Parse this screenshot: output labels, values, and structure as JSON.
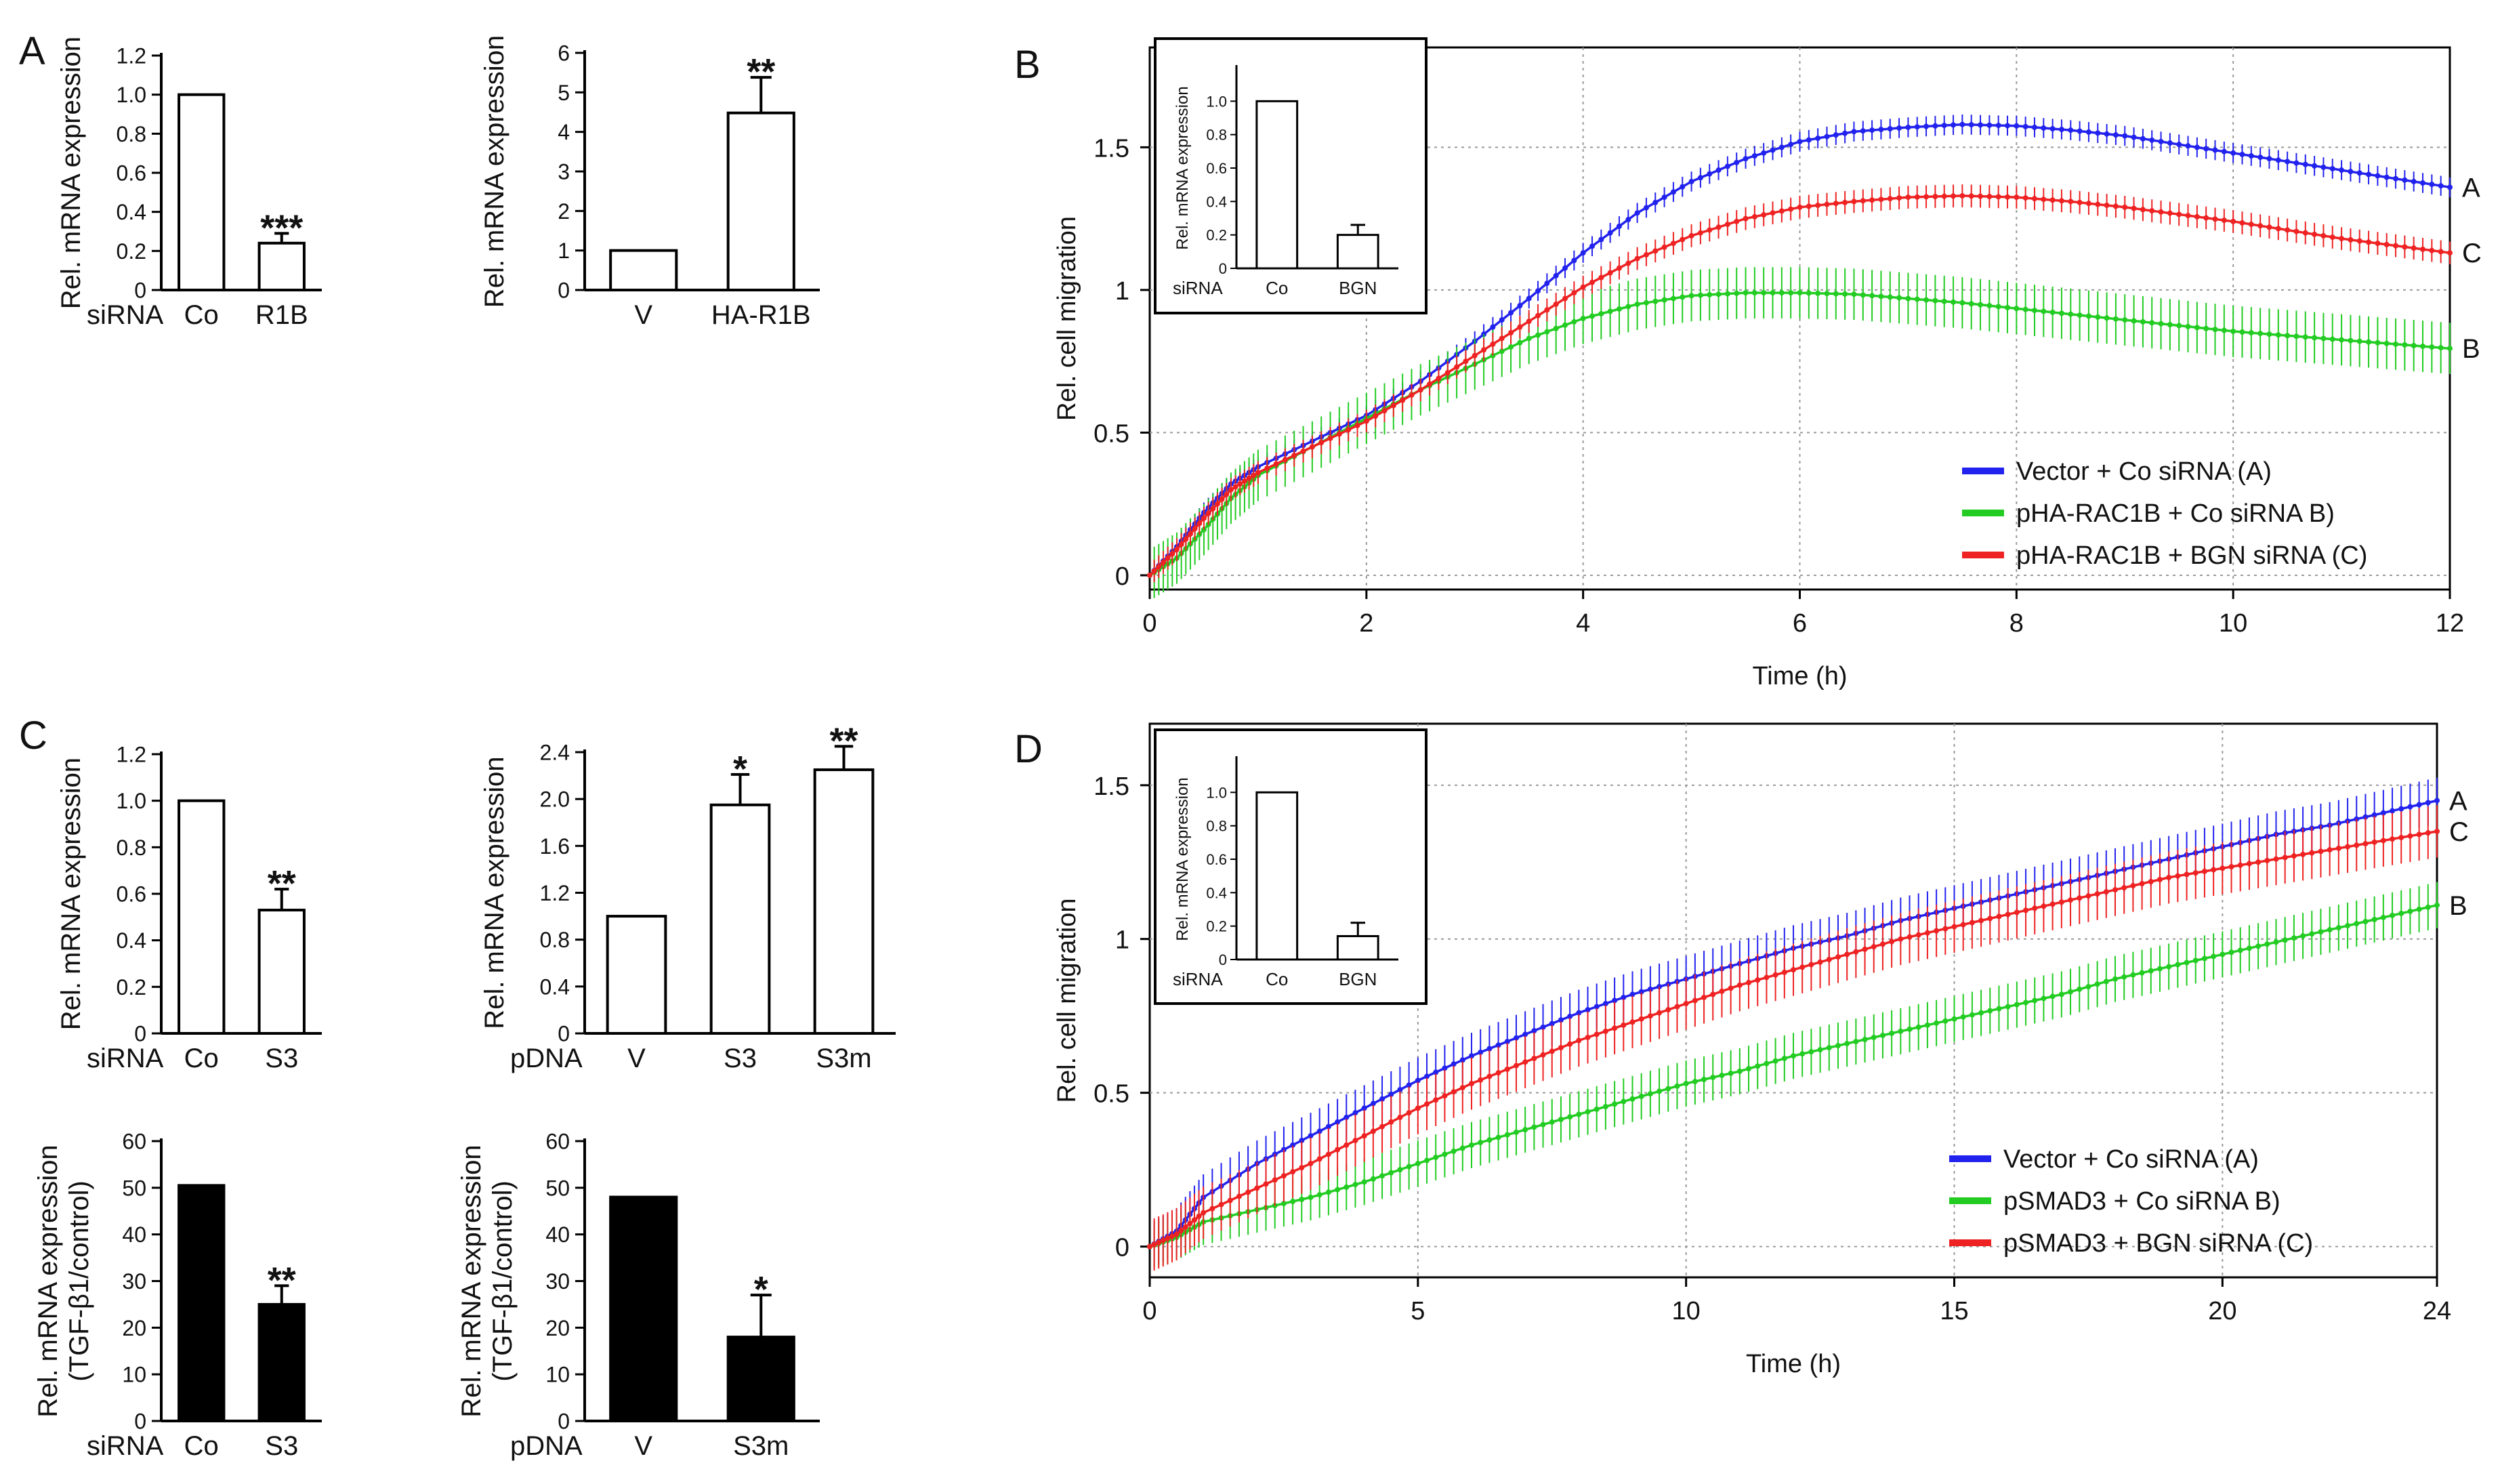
{
  "figure": {
    "panel_labels": [
      "A",
      "B",
      "C",
      "D"
    ]
  },
  "chart_data": [
    {
      "id": "A1",
      "type": "bar",
      "panel": "A",
      "ylabel": "Rel. mRNA expression",
      "group_label": "siRNA",
      "categories": [
        "Co",
        "R1B"
      ],
      "values": [
        1.0,
        0.24
      ],
      "errors": [
        0,
        0.05
      ],
      "significance": [
        "",
        "***"
      ],
      "ylim": [
        0,
        1.2
      ],
      "yticks": [
        "0",
        "0.2",
        "0.4",
        "0.6",
        "0.8",
        "1.0",
        "1.2"
      ],
      "bar_fill": "#ffffff"
    },
    {
      "id": "A2",
      "type": "bar",
      "panel": "A",
      "ylabel": "Rel. mRNA expression",
      "group_label": "",
      "categories": [
        "V",
        "HA-R1B"
      ],
      "values": [
        1.0,
        4.48
      ],
      "errors": [
        0,
        0.9
      ],
      "significance": [
        "",
        "**"
      ],
      "ylim": [
        0,
        6
      ],
      "yticks": [
        "0",
        "1",
        "2",
        "3",
        "4",
        "5",
        "6"
      ],
      "bar_fill": "#ffffff"
    },
    {
      "id": "B",
      "type": "line",
      "panel": "B",
      "xlabel": "Time (h)",
      "ylabel": "Rel. cell migration",
      "xlim": [
        0,
        12
      ],
      "ylim": [
        -0.05,
        1.85
      ],
      "xticks": [
        "0",
        "2",
        "4",
        "6",
        "8",
        "10",
        "12"
      ],
      "yticks": [
        "0",
        "0.5",
        "1",
        "1.5"
      ],
      "grid": true,
      "legend_position": "bottom-right",
      "series": [
        {
          "name": "Vector + Co siRNA (A)",
          "end_label": "A",
          "color": "#2222ee",
          "err": 0.035,
          "points": [
            [
              0,
              0
            ],
            [
              0.25,
              0.1
            ],
            [
              0.5,
              0.22
            ],
            [
              0.75,
              0.32
            ],
            [
              1,
              0.38
            ],
            [
              1.5,
              0.47
            ],
            [
              2,
              0.56
            ],
            [
              2.5,
              0.68
            ],
            [
              3,
              0.82
            ],
            [
              3.5,
              0.97
            ],
            [
              4,
              1.13
            ],
            [
              4.5,
              1.27
            ],
            [
              5,
              1.38
            ],
            [
              5.5,
              1.46
            ],
            [
              6,
              1.52
            ],
            [
              6.5,
              1.555
            ],
            [
              7,
              1.57
            ],
            [
              7.5,
              1.58
            ],
            [
              8,
              1.575
            ],
            [
              8.5,
              1.56
            ],
            [
              9,
              1.54
            ],
            [
              9.5,
              1.51
            ],
            [
              10,
              1.48
            ],
            [
              10.5,
              1.45
            ],
            [
              11,
              1.42
            ],
            [
              11.5,
              1.39
            ],
            [
              12,
              1.36
            ]
          ]
        },
        {
          "name": "pHA-RAC1B + Co siRNA B)",
          "end_label": "B",
          "color": "#22cc22",
          "err": 0.09,
          "points": [
            [
              0,
              0
            ],
            [
              0.25,
              0.06
            ],
            [
              0.5,
              0.16
            ],
            [
              0.75,
              0.27
            ],
            [
              1,
              0.35
            ],
            [
              1.5,
              0.45
            ],
            [
              2,
              0.55
            ],
            [
              2.5,
              0.65
            ],
            [
              3,
              0.74
            ],
            [
              3.5,
              0.83
            ],
            [
              4,
              0.9
            ],
            [
              4.5,
              0.95
            ],
            [
              5,
              0.98
            ],
            [
              5.5,
              0.99
            ],
            [
              6,
              0.99
            ],
            [
              6.5,
              0.985
            ],
            [
              7,
              0.97
            ],
            [
              7.5,
              0.955
            ],
            [
              8,
              0.935
            ],
            [
              8.5,
              0.915
            ],
            [
              9,
              0.895
            ],
            [
              9.5,
              0.875
            ],
            [
              10,
              0.855
            ],
            [
              10.5,
              0.84
            ],
            [
              11,
              0.825
            ],
            [
              11.5,
              0.81
            ],
            [
              12,
              0.795
            ]
          ]
        },
        {
          "name": "pHA-RAC1B + BGN siRNA (C)",
          "end_label": "C",
          "color": "#ee2222",
          "err": 0.04,
          "points": [
            [
              0,
              0
            ],
            [
              0.25,
              0.09
            ],
            [
              0.5,
              0.2
            ],
            [
              0.75,
              0.3
            ],
            [
              1,
              0.36
            ],
            [
              1.5,
              0.45
            ],
            [
              2,
              0.54
            ],
            [
              2.5,
              0.65
            ],
            [
              3,
              0.77
            ],
            [
              3.5,
              0.89
            ],
            [
              4,
              1.01
            ],
            [
              4.5,
              1.11
            ],
            [
              5,
              1.19
            ],
            [
              5.5,
              1.25
            ],
            [
              6,
              1.29
            ],
            [
              6.5,
              1.31
            ],
            [
              7,
              1.325
            ],
            [
              7.5,
              1.33
            ],
            [
              8,
              1.325
            ],
            [
              8.5,
              1.31
            ],
            [
              9,
              1.29
            ],
            [
              9.5,
              1.265
            ],
            [
              10,
              1.24
            ],
            [
              10.5,
              1.21
            ],
            [
              11,
              1.18
            ],
            [
              11.5,
              1.155
            ],
            [
              12,
              1.13
            ]
          ]
        }
      ],
      "inset": {
        "ylabel": "Rel. mRNA expression",
        "group_label": "siRNA",
        "categories": [
          "Co",
          "BGN"
        ],
        "values": [
          1.0,
          0.2
        ],
        "errors": [
          0,
          0.06
        ],
        "ylim": [
          0,
          1.2
        ],
        "yticks": [
          "0",
          "0.2",
          "0.4",
          "0.6",
          "0.8",
          "1.0"
        ]
      }
    },
    {
      "id": "C1",
      "type": "bar",
      "panel": "C",
      "ylabel": "Rel. mRNA expression",
      "group_label": "siRNA",
      "categories": [
        "Co",
        "S3"
      ],
      "values": [
        1.0,
        0.53
      ],
      "errors": [
        0,
        0.09
      ],
      "significance": [
        "",
        "**"
      ],
      "ylim": [
        0,
        1.2
      ],
      "yticks": [
        "0",
        "0.2",
        "0.4",
        "0.6",
        "0.8",
        "1.0",
        "1.2"
      ],
      "bar_fill": "#ffffff"
    },
    {
      "id": "C2",
      "type": "bar",
      "panel": "C",
      "ylabel": "Rel. mRNA expression",
      "group_label": "pDNA",
      "categories": [
        "V",
        "S3",
        "S3m"
      ],
      "values": [
        1.0,
        1.95,
        2.25
      ],
      "errors": [
        0,
        0.26,
        0.2
      ],
      "significance": [
        "",
        "*",
        "**"
      ],
      "ylim": [
        0,
        2.4
      ],
      "yticks": [
        "0",
        "0.4",
        "0.8",
        "1.2",
        "1.6",
        "2.0",
        "2.4"
      ],
      "bar_fill": "#ffffff"
    },
    {
      "id": "C3",
      "type": "bar",
      "panel": "C",
      "ylabel": "Rel. mRNA expression",
      "ylabel2": "(TGF-β1/control)",
      "group_label": "siRNA",
      "categories": [
        "Co",
        "S3"
      ],
      "values": [
        50.5,
        25
      ],
      "errors": [
        0,
        4
      ],
      "significance": [
        "",
        "**"
      ],
      "ylim": [
        0,
        60
      ],
      "yticks": [
        "0",
        "10",
        "20",
        "30",
        "40",
        "50",
        "60"
      ],
      "bar_fill": "#000000"
    },
    {
      "id": "C4",
      "type": "bar",
      "panel": "C",
      "ylabel": "Rel. mRNA expression",
      "ylabel2": "(TGF-β1/control)",
      "group_label": "pDNA",
      "categories": [
        "V",
        "S3m"
      ],
      "values": [
        48,
        18
      ],
      "errors": [
        0,
        9
      ],
      "significance": [
        "",
        "*"
      ],
      "ylim": [
        0,
        60
      ],
      "yticks": [
        "0",
        "10",
        "20",
        "30",
        "40",
        "50",
        "60"
      ],
      "bar_fill": "#000000"
    },
    {
      "id": "D",
      "type": "line",
      "panel": "D",
      "xlabel": "Time (h)",
      "ylabel": "Rel. cell migration",
      "xlim": [
        0,
        24
      ],
      "ylim": [
        -0.1,
        1.7
      ],
      "xticks": [
        "0",
        "5",
        "10",
        "15",
        "20",
        "24"
      ],
      "yticks": [
        "0",
        "0.5",
        "1",
        "1.5"
      ],
      "grid": true,
      "legend_position": "bottom-right",
      "series": [
        {
          "name": "Vector + Co siRNA (A)",
          "end_label": "A",
          "color": "#2222ee",
          "err": 0.075,
          "points": [
            [
              0,
              0
            ],
            [
              0.5,
              0.05
            ],
            [
              1,
              0.16
            ],
            [
              2,
              0.27
            ],
            [
              3,
              0.36
            ],
            [
              4,
              0.45
            ],
            [
              5,
              0.54
            ],
            [
              6,
              0.62
            ],
            [
              7,
              0.69
            ],
            [
              8,
              0.76
            ],
            [
              9,
              0.82
            ],
            [
              10,
              0.87
            ],
            [
              11,
              0.92
            ],
            [
              12,
              0.97
            ],
            [
              13,
              1.01
            ],
            [
              14,
              1.06
            ],
            [
              15,
              1.1
            ],
            [
              16,
              1.14
            ],
            [
              17,
              1.18
            ],
            [
              18,
              1.22
            ],
            [
              19,
              1.26
            ],
            [
              20,
              1.3
            ],
            [
              21,
              1.34
            ],
            [
              22,
              1.37
            ],
            [
              23,
              1.41
            ],
            [
              24,
              1.45
            ]
          ]
        },
        {
          "name": "pSMAD3 + Co siRNA B)",
          "end_label": "B",
          "color": "#22cc22",
          "err": 0.075,
          "points": [
            [
              0,
              0
            ],
            [
              0.5,
              0.03
            ],
            [
              1,
              0.08
            ],
            [
              2,
              0.12
            ],
            [
              3,
              0.16
            ],
            [
              4,
              0.21
            ],
            [
              5,
              0.27
            ],
            [
              6,
              0.33
            ],
            [
              7,
              0.38
            ],
            [
              8,
              0.43
            ],
            [
              9,
              0.48
            ],
            [
              10,
              0.53
            ],
            [
              11,
              0.57
            ],
            [
              12,
              0.62
            ],
            [
              13,
              0.66
            ],
            [
              14,
              0.7
            ],
            [
              15,
              0.74
            ],
            [
              16,
              0.78
            ],
            [
              17,
              0.82
            ],
            [
              18,
              0.87
            ],
            [
              19,
              0.91
            ],
            [
              20,
              0.95
            ],
            [
              21,
              0.99
            ],
            [
              22,
              1.03
            ],
            [
              23,
              1.07
            ],
            [
              24,
              1.11
            ]
          ]
        },
        {
          "name": "pSMAD3 + BGN siRNA (C)",
          "end_label": "C",
          "color": "#ee2222",
          "err": 0.085,
          "points": [
            [
              0,
              0
            ],
            [
              0.5,
              0.04
            ],
            [
              1,
              0.11
            ],
            [
              2,
              0.19
            ],
            [
              3,
              0.27
            ],
            [
              4,
              0.36
            ],
            [
              5,
              0.45
            ],
            [
              6,
              0.53
            ],
            [
              7,
              0.6
            ],
            [
              8,
              0.67
            ],
            [
              9,
              0.73
            ],
            [
              10,
              0.79
            ],
            [
              11,
              0.85
            ],
            [
              12,
              0.9
            ],
            [
              13,
              0.95
            ],
            [
              14,
              1.0
            ],
            [
              15,
              1.04
            ],
            [
              16,
              1.08
            ],
            [
              17,
              1.12
            ],
            [
              18,
              1.16
            ],
            [
              19,
              1.2
            ],
            [
              20,
              1.23
            ],
            [
              21,
              1.26
            ],
            [
              22,
              1.29
            ],
            [
              23,
              1.32
            ],
            [
              24,
              1.35
            ]
          ]
        }
      ],
      "inset": {
        "ylabel": "Rel. mRNA expression",
        "group_label": "siRNA",
        "categories": [
          "Co",
          "BGN"
        ],
        "values": [
          1.0,
          0.14
        ],
        "errors": [
          0,
          0.08
        ],
        "ylim": [
          0,
          1.2
        ],
        "yticks": [
          "0",
          "0.2",
          "0.4",
          "0.6",
          "0.8",
          "1.0"
        ]
      }
    }
  ]
}
